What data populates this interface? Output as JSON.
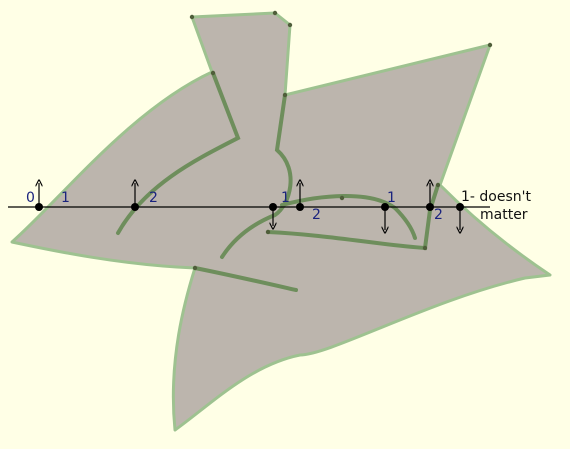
{
  "colors": {
    "background": "#ffffe6",
    "region_fill": "#bcb5ad",
    "region_stroke": "#9ec290",
    "curve": "#6e8e5c",
    "scan_line": "#000000",
    "point": "#000000",
    "label": "#1a237e"
  },
  "labels": {
    "l0": "0",
    "l1a": "1",
    "l2a": "2",
    "l1b": "1",
    "l2b": "2",
    "l1c": "1",
    "l2c": "2",
    "note_num": "1",
    "note_rest": "- doesn't",
    "note_line2": "matter"
  }
}
